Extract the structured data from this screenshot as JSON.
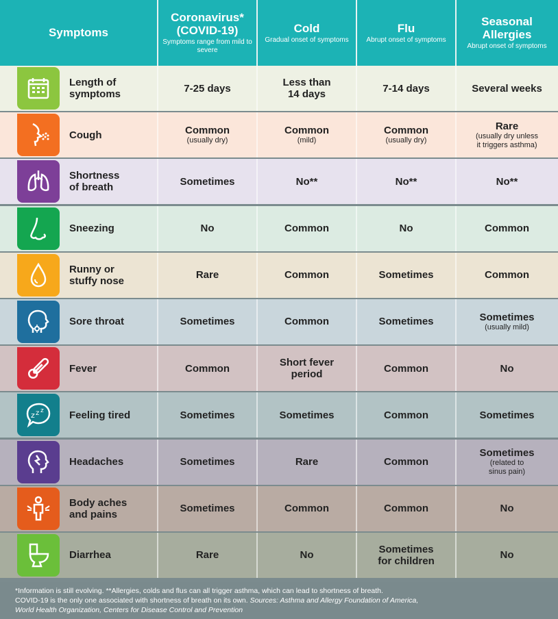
{
  "header": {
    "symptoms_label": "Symptoms",
    "columns": [
      {
        "title": "Coronavirus*\n(COVID-19)",
        "subtitle": "Symptoms range from mild to severe"
      },
      {
        "title": "Cold",
        "subtitle": "Gradual onset of symptoms"
      },
      {
        "title": "Flu",
        "subtitle": "Abrupt onset of symptoms"
      },
      {
        "title": "Seasonal Allergies",
        "subtitle": "Abrupt onset of symptoms"
      }
    ]
  },
  "rows": [
    {
      "symptom": "Length of\nsymptoms",
      "icon": "calendar-icon",
      "icon_color": "#8cc63f",
      "row_color": "#eef1e4",
      "cells": [
        {
          "value": "7-25 days"
        },
        {
          "value": "Less than\n14 days"
        },
        {
          "value": "7-14 days"
        },
        {
          "value": "Several weeks"
        }
      ]
    },
    {
      "symptom": "Cough",
      "icon": "cough-icon",
      "icon_color": "#f36f21",
      "row_color": "#fbe6da",
      "cells": [
        {
          "value": "Common",
          "note": "(usually dry)"
        },
        {
          "value": "Common",
          "note": "(mild)"
        },
        {
          "value": "Common",
          "note": "(usually dry)"
        },
        {
          "value": "Rare",
          "note": "(usually dry unless\nit triggers asthma)"
        }
      ]
    },
    {
      "symptom": "Shortness\nof breath",
      "icon": "lungs-icon",
      "icon_color": "#7d3f98",
      "row_color": "#e7e2ee",
      "cells": [
        {
          "value": "Sometimes"
        },
        {
          "value": "No**"
        },
        {
          "value": "No**"
        },
        {
          "value": "No**"
        }
      ]
    },
    {
      "symptom": "Sneezing",
      "icon": "nose-icon",
      "icon_color": "#14a650",
      "row_color": "#dcebe2",
      "cells": [
        {
          "value": "No"
        },
        {
          "value": "Common"
        },
        {
          "value": "No"
        },
        {
          "value": "Common"
        }
      ]
    },
    {
      "symptom": "Runny or\nstuffy nose",
      "icon": "droplet-icon",
      "icon_color": "#f7a81b",
      "row_color": "#ece4d3",
      "cells": [
        {
          "value": "Rare"
        },
        {
          "value": "Common"
        },
        {
          "value": "Sometimes"
        },
        {
          "value": "Common"
        }
      ]
    },
    {
      "symptom": "Sore throat",
      "icon": "throat-icon",
      "icon_color": "#1f6f9e",
      "row_color": "#c9d6dc",
      "cells": [
        {
          "value": "Sometimes"
        },
        {
          "value": "Common"
        },
        {
          "value": "Sometimes"
        },
        {
          "value": "Sometimes",
          "note": "(usually mild)"
        }
      ]
    },
    {
      "symptom": "Fever",
      "icon": "thermometer-icon",
      "icon_color": "#d42d3b",
      "row_color": "#d2c2c3",
      "cells": [
        {
          "value": "Common"
        },
        {
          "value": "Short fever\nperiod"
        },
        {
          "value": "Common"
        },
        {
          "value": "No"
        }
      ]
    },
    {
      "symptom": "Feeling tired",
      "icon": "zzz-bubble-icon",
      "icon_color": "#127f8c",
      "row_color": "#b2c3c5",
      "cells": [
        {
          "value": "Sometimes"
        },
        {
          "value": "Sometimes"
        },
        {
          "value": "Common"
        },
        {
          "value": "Sometimes"
        }
      ]
    },
    {
      "symptom": "Headaches",
      "icon": "headache-icon",
      "icon_color": "#5a3d8f",
      "row_color": "#b6b1bd",
      "cells": [
        {
          "value": "Sometimes"
        },
        {
          "value": "Rare"
        },
        {
          "value": "Common"
        },
        {
          "value": "Sometimes",
          "note": "(related to\nsinus pain)"
        }
      ]
    },
    {
      "symptom": "Body aches\nand pains",
      "icon": "body-aches-icon",
      "icon_color": "#e55c1c",
      "row_color": "#b9aba3",
      "cells": [
        {
          "value": "Sometimes"
        },
        {
          "value": "Common"
        },
        {
          "value": "Common"
        },
        {
          "value": "No"
        }
      ]
    },
    {
      "symptom": "Diarrhea",
      "icon": "toilet-icon",
      "icon_color": "#6bbf3a",
      "row_color": "#a7ad9e",
      "cells": [
        {
          "value": "Rare"
        },
        {
          "value": "No"
        },
        {
          "value": "Sometimes\nfor children"
        },
        {
          "value": "No"
        }
      ]
    }
  ],
  "footnote": {
    "line1": "*Information is still evolving. **Allergies, colds and flus can all trigger asthma, which can lead to shortness of breath.",
    "line2_plain": "COVID-19 is the only one associated with shortness of breath on its own. ",
    "sources": "Sources: Asthma and Allergy Foundation of America,\nWorld Health Organization, Centers for Disease Control and Prevention"
  }
}
